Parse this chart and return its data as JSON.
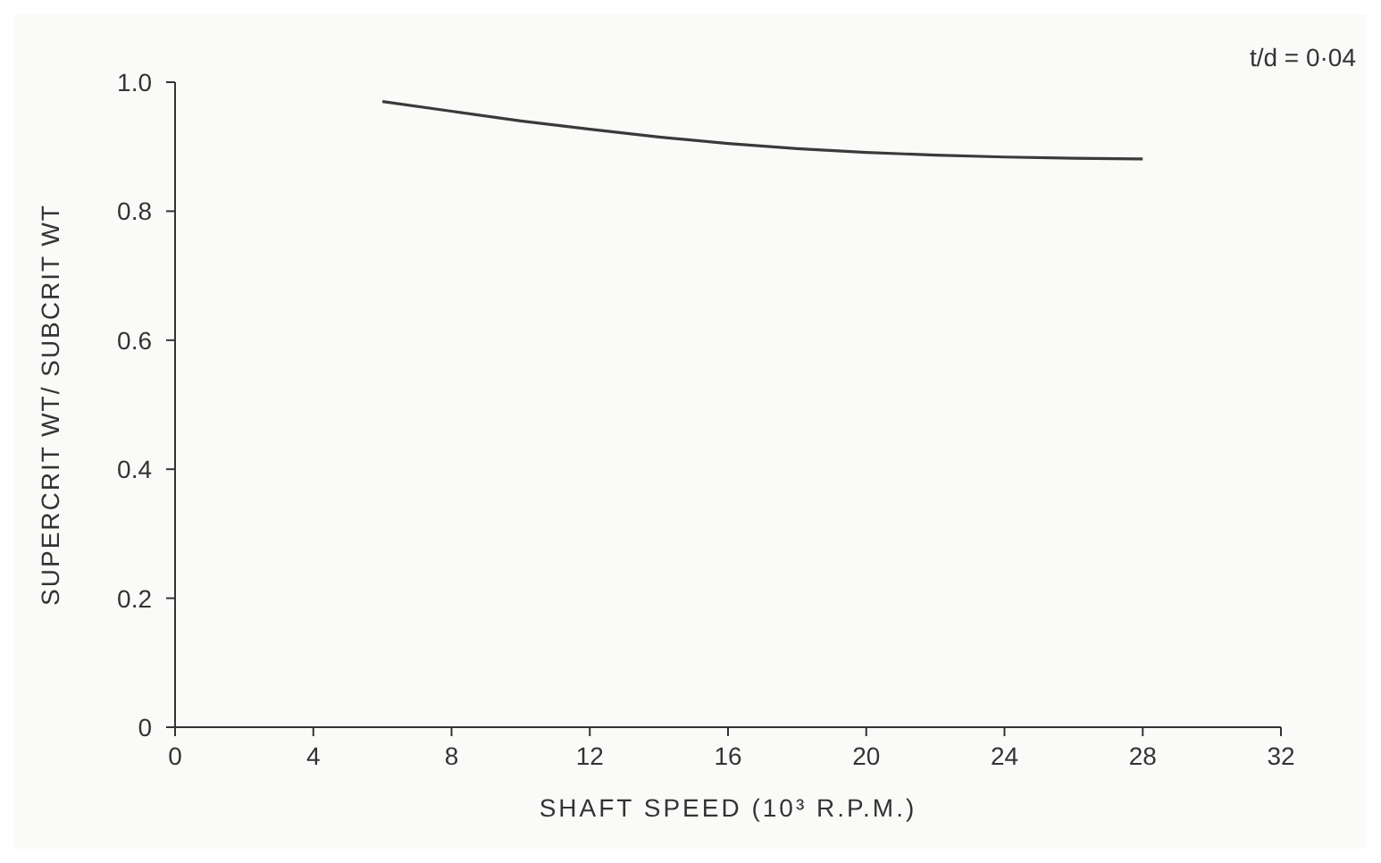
{
  "chart_data": {
    "type": "line",
    "xlabel": "SHAFT SPEED (10³ R.P.M.)",
    "ylabel": "SUPERCRIT WT/ SUBCRIT WT",
    "annotations": [
      "t/d = 0·04"
    ],
    "x": [
      6,
      8,
      10,
      12,
      14,
      16,
      18,
      20,
      22,
      24,
      26,
      28
    ],
    "series": [
      {
        "color": "#3a3a3a",
        "values": [
          0.97,
          0.955,
          0.94,
          0.927,
          0.915,
          0.905,
          0.897,
          0.891,
          0.887,
          0.884,
          0.882,
          0.881
        ]
      }
    ],
    "xlim": [
      0,
      32
    ],
    "xticks": [
      0,
      4,
      8,
      12,
      16,
      20,
      24,
      28,
      32
    ],
    "ylim": [
      0,
      1.0
    ],
    "yticks": [
      0,
      0.2,
      0.4,
      0.6,
      0.8,
      {
        "value": 1.0,
        "label": "1.0"
      }
    ],
    "grid": false,
    "legend": false,
    "marker": "none",
    "line_style": "solid"
  }
}
